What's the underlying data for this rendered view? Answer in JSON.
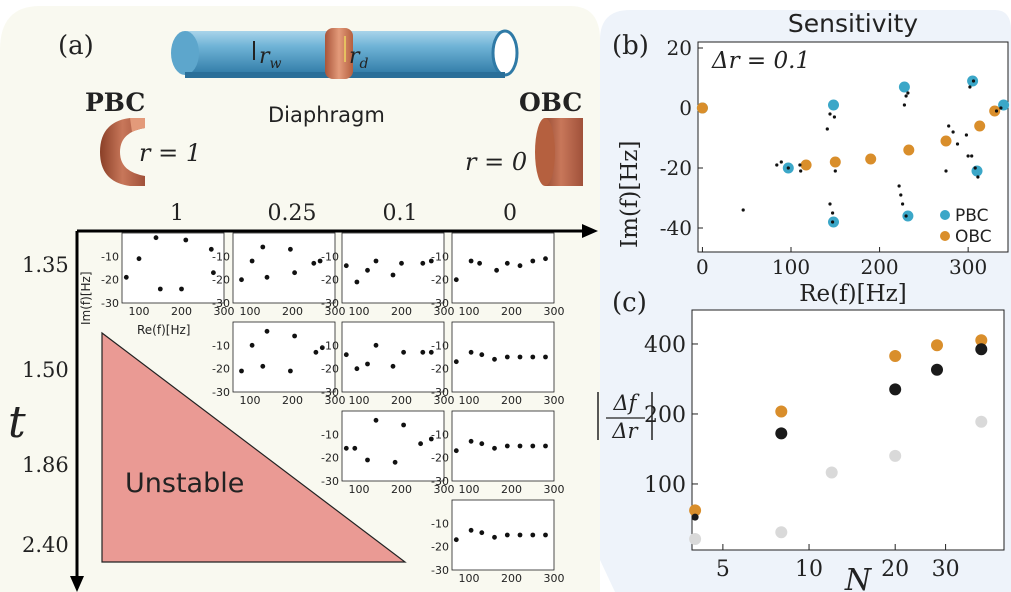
{
  "panel_a": {
    "label": "(a)",
    "pipe_labels": {
      "rw": "r",
      "rw_sub": "w",
      "rd": "r",
      "rd_sub": "d"
    },
    "diaphragm": "Diaphragm",
    "pbc": {
      "title": "PBC",
      "r_label": "r = 1"
    },
    "obc": {
      "title": "OBC",
      "r_label": "r = 0"
    },
    "r_values": [
      "1",
      "0.25",
      "0.1",
      "0"
    ],
    "t_values": [
      "1.35",
      "1.50",
      "1.86",
      "2.40"
    ],
    "t_axis": "t",
    "unstable": "Unstable",
    "inset_ylabel": "Im(f)[Hz]",
    "inset_xlabel": "Re(f)[Hz]",
    "inset_xticks": [
      "100",
      "200",
      "300"
    ],
    "inset_yticks": [
      "-10",
      "-20",
      "-30"
    ],
    "insets": [
      {
        "row": 0,
        "col": 0,
        "pts": [
          [
            70,
            -19
          ],
          [
            100,
            -11
          ],
          [
            140,
            -2
          ],
          [
            150,
            -24
          ],
          [
            200,
            -24
          ],
          [
            210,
            -3
          ],
          [
            270,
            -7
          ],
          [
            275,
            -17
          ]
        ]
      },
      {
        "row": 0,
        "col": 1,
        "pts": [
          [
            80,
            -20
          ],
          [
            105,
            -12
          ],
          [
            130,
            -6
          ],
          [
            140,
            -19
          ],
          [
            195,
            -7
          ],
          [
            205,
            -17
          ],
          [
            250,
            -13
          ],
          [
            265,
            -12
          ]
        ]
      },
      {
        "row": 0,
        "col": 2,
        "pts": [
          [
            70,
            -14
          ],
          [
            95,
            -21
          ],
          [
            120,
            -16
          ],
          [
            140,
            -12
          ],
          [
            180,
            -18
          ],
          [
            200,
            -13
          ],
          [
            250,
            -13
          ],
          [
            270,
            -12
          ]
        ]
      },
      {
        "row": 0,
        "col": 3,
        "pts": [
          [
            70,
            -20
          ],
          [
            105,
            -12
          ],
          [
            125,
            -13
          ],
          [
            165,
            -16
          ],
          [
            190,
            -13
          ],
          [
            220,
            -14
          ],
          [
            250,
            -12
          ],
          [
            280,
            -11
          ]
        ]
      },
      {
        "row": 1,
        "col": 1,
        "pts": [
          [
            80,
            -21
          ],
          [
            105,
            -10
          ],
          [
            130,
            -19
          ],
          [
            140,
            -4
          ],
          [
            195,
            -21
          ],
          [
            205,
            -6
          ],
          [
            255,
            -13
          ],
          [
            270,
            -11
          ]
        ]
      },
      {
        "row": 1,
        "col": 2,
        "pts": [
          [
            70,
            -14
          ],
          [
            95,
            -20
          ],
          [
            120,
            -18
          ],
          [
            140,
            -10
          ],
          [
            180,
            -19
          ],
          [
            205,
            -13
          ],
          [
            250,
            -13
          ],
          [
            270,
            -13
          ]
        ]
      },
      {
        "row": 1,
        "col": 3,
        "pts": [
          [
            70,
            -17
          ],
          [
            105,
            -13
          ],
          [
            130,
            -14
          ],
          [
            160,
            -16
          ],
          [
            190,
            -15
          ],
          [
            220,
            -15
          ],
          [
            250,
            -15
          ],
          [
            280,
            -15
          ]
        ]
      },
      {
        "row": 2,
        "col": 2,
        "pts": [
          [
            70,
            -16
          ],
          [
            90,
            -16
          ],
          [
            120,
            -21
          ],
          [
            140,
            -4
          ],
          [
            185,
            -22
          ],
          [
            205,
            -6
          ],
          [
            245,
            -14
          ],
          [
            270,
            -12
          ]
        ]
      },
      {
        "row": 2,
        "col": 3,
        "pts": [
          [
            70,
            -17
          ],
          [
            105,
            -13
          ],
          [
            130,
            -14
          ],
          [
            160,
            -16
          ],
          [
            190,
            -15
          ],
          [
            220,
            -15
          ],
          [
            250,
            -15
          ],
          [
            280,
            -15
          ]
        ]
      },
      {
        "row": 3,
        "col": 3,
        "pts": [
          [
            70,
            -17
          ],
          [
            105,
            -13
          ],
          [
            130,
            -14
          ],
          [
            160,
            -16
          ],
          [
            190,
            -15
          ],
          [
            220,
            -15
          ],
          [
            250,
            -15
          ],
          [
            280,
            -15
          ]
        ]
      }
    ]
  },
  "panel_b": {
    "label": "(b)",
    "title": "Sensitivity",
    "annotation": "Δr = 0.1",
    "xlabel": "Re(f)[Hz]",
    "ylabel": "Im(f)[Hz]",
    "colors": {
      "PBC": "#3ba7c8",
      "OBC": "#d98e2b"
    },
    "legend": [
      "PBC",
      "OBC"
    ]
  },
  "panel_c": {
    "label": "(c)",
    "xlabel": "N",
    "ylabel_num": "Δf",
    "ylabel_den": "Δr",
    "colors": {
      "black": "#1a1a1a",
      "orange": "#d98e2b",
      "gray": "#d9d9d9"
    }
  },
  "chart_data": [
    {
      "type": "scatter",
      "title": "Sensitivity",
      "xlabel": "Re(f)[Hz]",
      "ylabel": "Im(f)[Hz]",
      "xlim": [
        -5,
        345
      ],
      "ylim": [
        -48,
        22
      ],
      "xticks": [
        0,
        100,
        200,
        300
      ],
      "yticks": [
        20,
        0,
        -20,
        -40
      ],
      "legend_position": "bottom-right",
      "series": [
        {
          "name": "PBC",
          "color": "#3ba7c8",
          "x": [
            0,
            97,
            148,
            148,
            228,
            232,
            305,
            310,
            340
          ],
          "y": [
            0,
            -20,
            1,
            -38,
            7,
            -36,
            9,
            -21,
            1
          ]
        },
        {
          "name": "OBC",
          "color": "#d98e2b",
          "x": [
            0,
            117,
            150,
            190,
            233,
            275,
            313,
            330
          ],
          "y": [
            0,
            -19,
            -18,
            -17,
            -14,
            -11,
            -6,
            -1
          ]
        },
        {
          "name": "",
          "color": "#111111",
          "x": [
            46,
            84,
            89,
            97,
            110,
            111,
            141,
            144,
            144,
            147,
            147,
            149,
            150,
            222,
            224,
            226,
            228,
            230,
            230,
            232,
            275,
            278,
            283,
            288,
            298,
            300,
            302,
            304,
            306,
            308,
            311,
            332,
            337
          ],
          "y": [
            -34,
            -19,
            -18,
            -20,
            -19,
            -21,
            -7,
            -32,
            -2,
            -38,
            -35,
            -3,
            -21,
            -26,
            -29,
            -32,
            1,
            4,
            -36,
            5,
            -21,
            -6,
            -8,
            -12,
            -9,
            -16,
            7,
            -16,
            9,
            -20,
            -23,
            -1,
            0
          ]
        }
      ]
    },
    {
      "type": "scatter",
      "xlabel": "N",
      "ylabel": "|Δf/Δr|",
      "xscale": "log",
      "yscale": "log",
      "xlim": [
        3.9,
        48
      ],
      "ylim": [
        52,
        560
      ],
      "xticks": [
        5,
        10,
        20,
        30
      ],
      "yticks": [
        100,
        200,
        400
      ],
      "series": [
        {
          "color": "#1a1a1a",
          "x": [
            4,
            8,
            20,
            28,
            40
          ],
          "y": [
            72,
            165,
            255,
            310,
            380
          ]
        },
        {
          "color": "#d98e2b",
          "x": [
            4,
            8,
            20,
            28,
            40
          ],
          "y": [
            77,
            205,
            355,
            395,
            415
          ]
        },
        {
          "color": "#d9d9d9",
          "x": [
            4,
            8,
            12,
            20,
            40
          ],
          "y": [
            58,
            62,
            112,
            132,
            185
          ]
        }
      ]
    }
  ]
}
